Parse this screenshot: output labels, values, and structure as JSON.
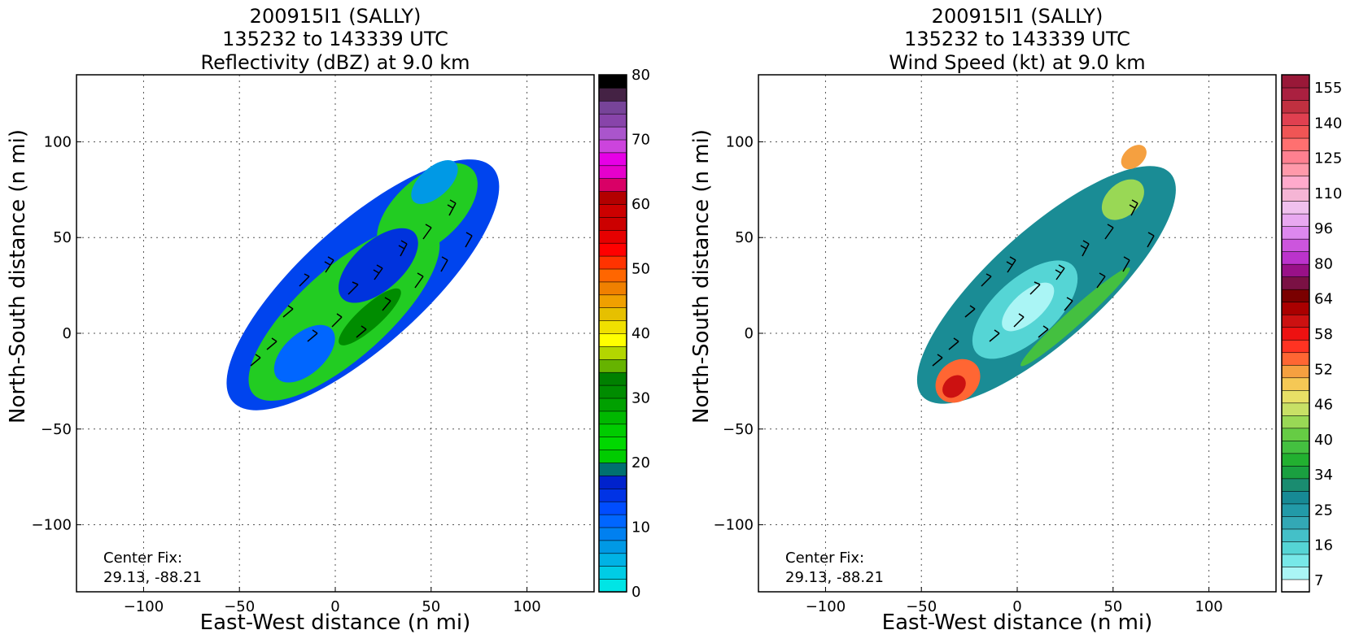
{
  "chart_data": [
    {
      "type": "heatmap",
      "title_lines": [
        "200915I1 (SALLY)",
        "135232 to 143339 UTC",
        "Reflectivity (dBZ) at 9.0 km"
      ],
      "xlabel": "East-West distance (n mi)",
      "ylabel": "North-South distance (n mi)",
      "xlim": [
        -135,
        135
      ],
      "ylim": [
        -135,
        135
      ],
      "x_ticks": [
        "−100",
        "−50",
        "0",
        "50",
        "100"
      ],
      "y_ticks": [
        "100",
        "50",
        "0",
        "−50",
        "−100"
      ],
      "grid": true,
      "annotation": [
        "Center Fix:",
        "29.13, -88.21"
      ],
      "colorbar": {
        "min": 0,
        "max": 80,
        "tick_labels": [
          "80",
          "70",
          "60",
          "50",
          "40",
          "30",
          "20",
          "10",
          "0"
        ],
        "colors": [
          "#00e5e5",
          "#00cce5",
          "#00b2e5",
          "#0099e5",
          "#0080f0",
          "#0066ff",
          "#004dff",
          "#0033e5",
          "#0022cc",
          "#007070",
          "#00cc00",
          "#00d800",
          "#00cc00",
          "#00b800",
          "#00a000",
          "#008c00",
          "#008000",
          "#66b300",
          "#b3d600",
          "#ffff00",
          "#f0e000",
          "#e6c000",
          "#f0a000",
          "#f08000",
          "#ff6600",
          "#ff3300",
          "#ff0000",
          "#e60000",
          "#cc0000",
          "#cc0000",
          "#b30000",
          "#d90066",
          "#e600cc",
          "#e600e6",
          "#cc44dd",
          "#aa55cc",
          "#8844aa",
          "#774499",
          "#442244",
          "#000000"
        ]
      },
      "wind_barbs_shown": true
    },
    {
      "type": "heatmap",
      "title_lines": [
        "200915I1 (SALLY)",
        "135232 to 143339 UTC",
        "Wind Speed (kt) at 9.0 km"
      ],
      "xlabel": "East-West distance (n mi)",
      "ylabel": "North-South distance (n mi)",
      "xlim": [
        -135,
        135
      ],
      "ylim": [
        -135,
        135
      ],
      "x_ticks": [
        "−100",
        "−50",
        "0",
        "50",
        "100"
      ],
      "y_ticks": [
        "100",
        "50",
        "0",
        "−50",
        "−100"
      ],
      "grid": true,
      "annotation": [
        "Center Fix:",
        "29.13, -88.21"
      ],
      "colorbar": {
        "tick_labels": [
          "155",
          "140",
          "125",
          "110",
          "96",
          "80",
          "64",
          "58",
          "52",
          "46",
          "40",
          "34",
          "25",
          "16",
          "7"
        ],
        "colors": [
          "#ffffff",
          "#aaf5f5",
          "#77e8e8",
          "#55d5d5",
          "#44c0c8",
          "#33a8b5",
          "#229aa8",
          "#178a95",
          "#1a8c70",
          "#1aa040",
          "#22b030",
          "#44c040",
          "#66cc44",
          "#99d855",
          "#c8e066",
          "#e8e066",
          "#f5c855",
          "#f5a040",
          "#ff6633",
          "#ff3322",
          "#ee1111",
          "#cc1111",
          "#aa0000",
          "#7a0000",
          "#7a1144",
          "#991188",
          "#bb33cc",
          "#cc55dd",
          "#dd88ee",
          "#e8a8f0",
          "#f0c0ee",
          "#f5b5d5",
          "#ffaacc",
          "#ff99aa",
          "#ff8090",
          "#ff7070",
          "#f05555",
          "#e04050",
          "#c03040",
          "#aa2040",
          "#991838"
        ]
      },
      "wind_barbs_shown": true
    }
  ]
}
